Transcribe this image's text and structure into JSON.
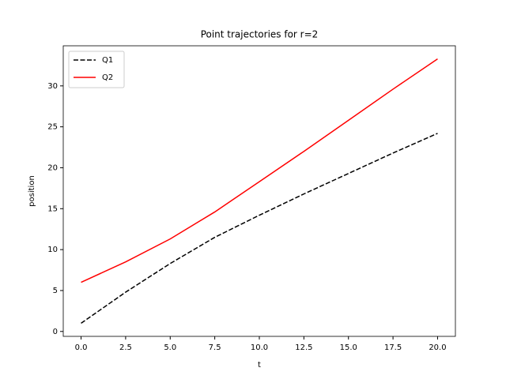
{
  "chart_data": {
    "type": "line",
    "title": "Point trajectories for r=2",
    "x_label": "t",
    "y_label": "position",
    "x": [
      0,
      2.5,
      5,
      7.5,
      10,
      12.5,
      15,
      17.5,
      20
    ],
    "series": [
      {
        "name": "Q1",
        "color": "#000000",
        "linestyle": "dashed",
        "values": [
          1.0,
          4.8,
          8.3,
          11.5,
          14.2,
          16.8,
          19.3,
          21.8,
          24.2
        ]
      },
      {
        "name": "Q2",
        "color": "#ff0000",
        "linestyle": "solid",
        "values": [
          6.0,
          8.5,
          11.3,
          14.6,
          18.3,
          22.0,
          25.8,
          29.6,
          33.3
        ]
      }
    ],
    "xlim": [
      -1,
      21
    ],
    "ylim": [
      -0.6,
      34.9
    ],
    "xticks": [
      {
        "value": 0,
        "label": "0.0"
      },
      {
        "value": 2.5,
        "label": "2.5"
      },
      {
        "value": 5,
        "label": "5.0"
      },
      {
        "value": 7.5,
        "label": "7.5"
      },
      {
        "value": 10,
        "label": "10.0"
      },
      {
        "value": 12.5,
        "label": "12.5"
      },
      {
        "value": 15,
        "label": "15.0"
      },
      {
        "value": 17.5,
        "label": "17.5"
      },
      {
        "value": 20,
        "label": "20.0"
      }
    ],
    "yticks": [
      0,
      5,
      10,
      15,
      20,
      25,
      30
    ],
    "grid": false,
    "legend": "upper-left"
  }
}
